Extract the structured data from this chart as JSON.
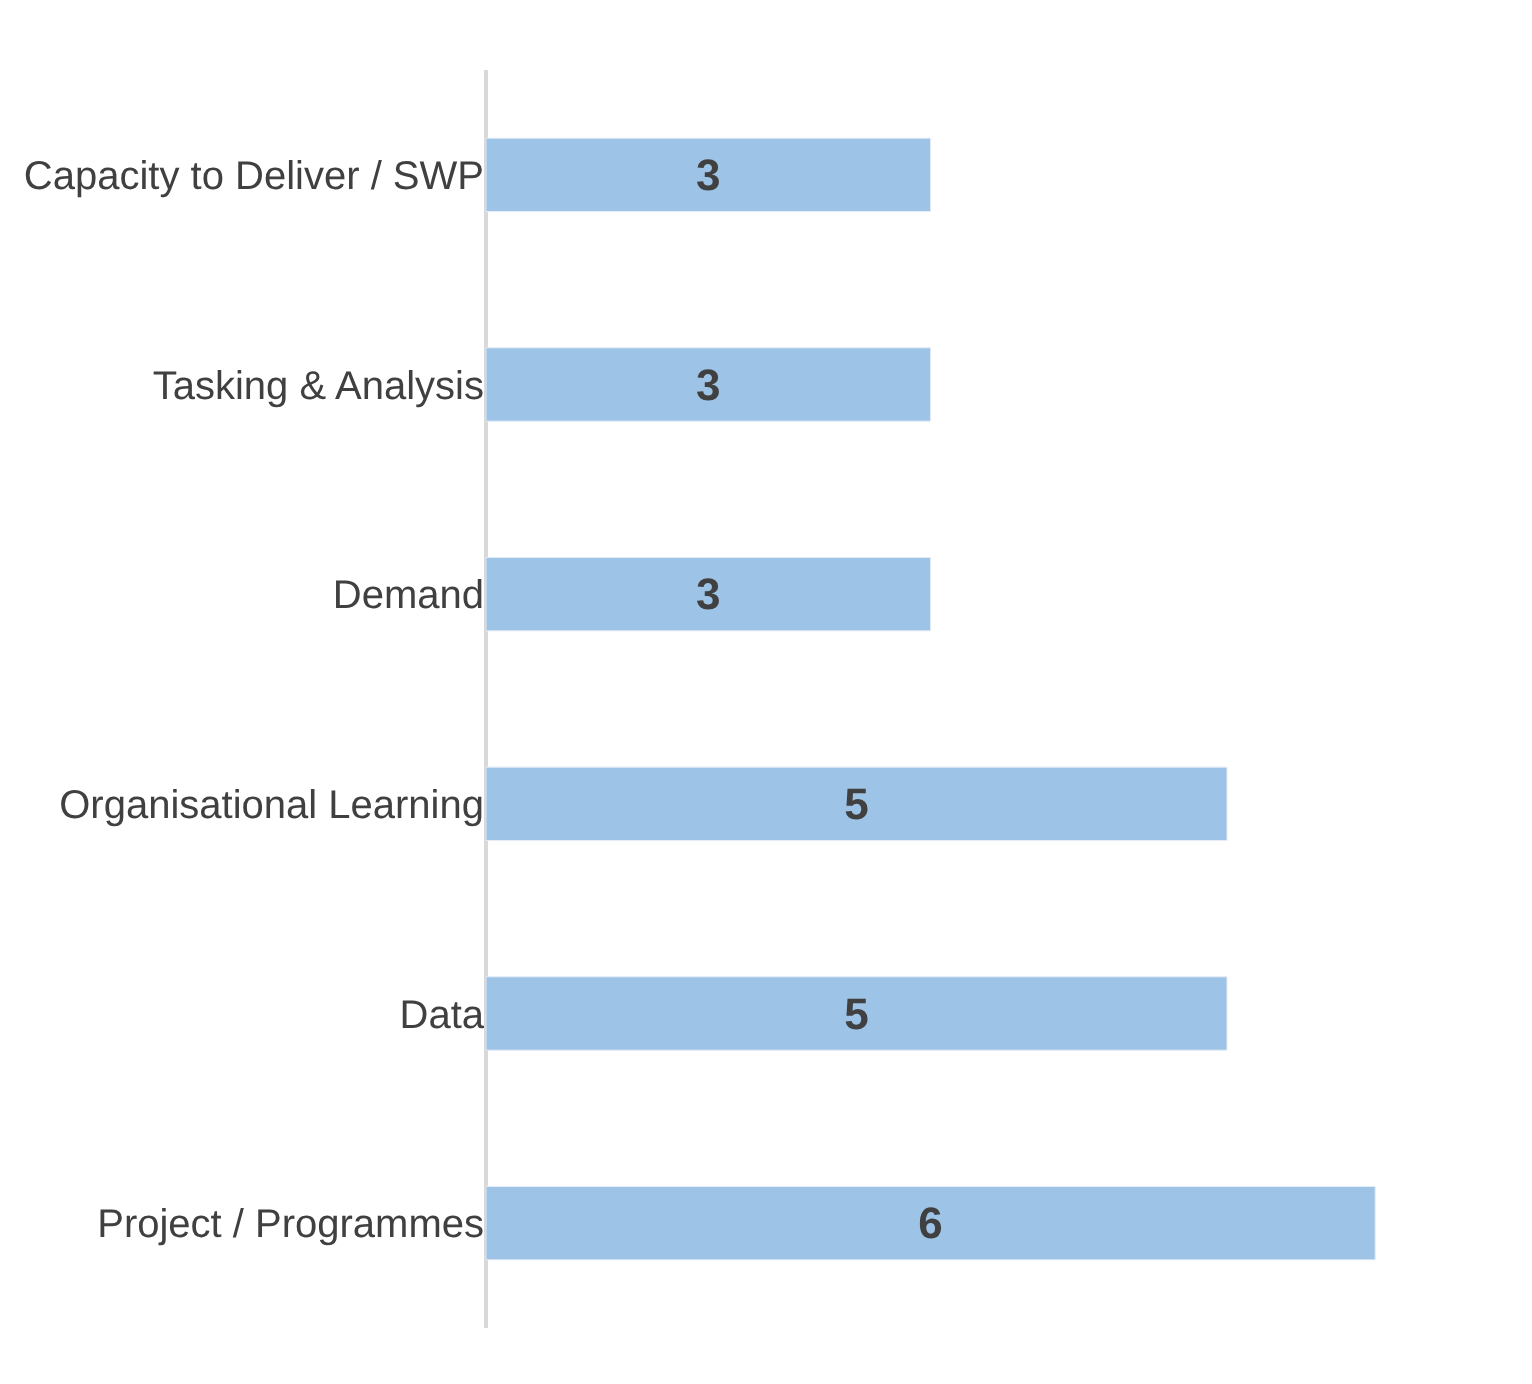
{
  "chart_data": {
    "type": "bar",
    "orientation": "horizontal",
    "categories": [
      "Capacity to Deliver / SWP",
      "Tasking & Analysis",
      "Demand",
      "Organisational Learning",
      "Data",
      "Project / Programmes"
    ],
    "values": [
      3,
      3,
      3,
      5,
      5,
      6
    ],
    "color": "#9dc3e6",
    "tick_labels": "y",
    "data_labels": true
  }
}
